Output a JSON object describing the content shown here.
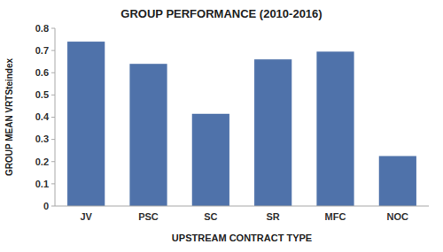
{
  "chart_data": {
    "type": "bar",
    "title": "GROUP PERFORMANCE (2010-2016)",
    "xlabel": "UPSTREAM CONTRACT TYPE",
    "ylabel": "GROUP MEAN VRTSteindex",
    "categories": [
      "JV",
      "PSC",
      "SC",
      "SR",
      "MFC",
      "NOC"
    ],
    "values": [
      0.74,
      0.64,
      0.415,
      0.66,
      0.695,
      0.225
    ],
    "color": "#4f72aa",
    "ylim": [
      0,
      0.8
    ],
    "yticks": [
      0,
      0.1,
      0.2,
      0.3,
      0.4,
      0.5,
      0.6,
      0.7,
      0.8
    ],
    "grid": false
  }
}
